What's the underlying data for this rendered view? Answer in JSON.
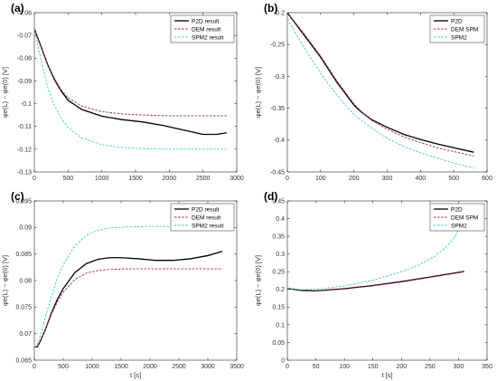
{
  "chart_data": [
    {
      "panel": "(a)",
      "type": "line",
      "xlim": [
        0,
        3000
      ],
      "ylim": [
        -0.13,
        -0.06
      ],
      "xticks": [
        0,
        500,
        1000,
        1500,
        2000,
        2500,
        3000
      ],
      "yticks": [
        -0.13,
        -0.12,
        -0.11,
        -0.1,
        -0.09,
        -0.08,
        -0.07,
        -0.06
      ],
      "ytick_labels": [
        "-0.13",
        "-0.12",
        "-0.11",
        "-0.1",
        "-0.09",
        "-0.08",
        "-0.07",
        "-0.06"
      ],
      "xlabel": "",
      "ylabel": "φe(L) − φe(0) [V]",
      "legend_position": "top-right",
      "series": [
        {
          "name": "P2D result",
          "color": "#000000",
          "dash": "solid",
          "x": [
            0,
            100,
            200,
            300,
            400,
            500,
            700,
            1000,
            1300,
            1600,
            1900,
            2200,
            2500,
            2700,
            2850
          ],
          "y": [
            -0.067,
            -0.075,
            -0.083,
            -0.0895,
            -0.0945,
            -0.0985,
            -0.1025,
            -0.1055,
            -0.107,
            -0.108,
            -0.1095,
            -0.1115,
            -0.1135,
            -0.1135,
            -0.1128
          ]
        },
        {
          "name": "DEM result",
          "color": "#a0283c",
          "dash": "dashed",
          "x": [
            0,
            100,
            200,
            300,
            400,
            500,
            700,
            1000,
            1300,
            1600,
            2000,
            2500,
            2850
          ],
          "y": [
            -0.067,
            -0.075,
            -0.083,
            -0.089,
            -0.094,
            -0.0975,
            -0.101,
            -0.1035,
            -0.1045,
            -0.105,
            -0.1053,
            -0.1053,
            -0.1053
          ]
        },
        {
          "name": "SPM2 result",
          "color": "#3cc8c8",
          "dash": "dashed",
          "x": [
            0,
            100,
            200,
            300,
            400,
            500,
            700,
            1000,
            1300,
            1600,
            2000,
            2500,
            2850
          ],
          "y": [
            -0.067,
            -0.081,
            -0.093,
            -0.101,
            -0.1065,
            -0.1105,
            -0.115,
            -0.118,
            -0.1192,
            -0.1198,
            -0.12,
            -0.12,
            -0.12
          ]
        }
      ]
    },
    {
      "panel": "(b)",
      "type": "line",
      "xlim": [
        0,
        600
      ],
      "ylim": [
        -0.45,
        -0.2
      ],
      "xticks": [
        0,
        100,
        200,
        300,
        400,
        500,
        600
      ],
      "yticks": [
        -0.45,
        -0.4,
        -0.35,
        -0.3,
        -0.25,
        -0.2
      ],
      "ytick_labels": [
        "-0.45",
        "-0.4",
        "-0.35",
        "-0.3",
        "-0.25",
        "-0.2"
      ],
      "xlabel": "",
      "ylabel": "φe(L) − φe(0) [V]",
      "legend_position": "top-right",
      "series": [
        {
          "name": "P2D",
          "color": "#000000",
          "dash": "solid",
          "x": [
            0,
            50,
            100,
            150,
            200,
            220,
            250,
            300,
            350,
            400,
            450,
            500,
            560
          ],
          "y": [
            -0.2,
            -0.235,
            -0.27,
            -0.31,
            -0.345,
            -0.355,
            -0.367,
            -0.38,
            -0.391,
            -0.399,
            -0.406,
            -0.412,
            -0.419
          ]
        },
        {
          "name": "DEM SPM",
          "color": "#a0283c",
          "dash": "dashed",
          "x": [
            0,
            50,
            100,
            150,
            200,
            220,
            250,
            300,
            350,
            400,
            450,
            500,
            560
          ],
          "y": [
            -0.2,
            -0.233,
            -0.268,
            -0.308,
            -0.343,
            -0.354,
            -0.368,
            -0.383,
            -0.395,
            -0.404,
            -0.412,
            -0.418,
            -0.425
          ]
        },
        {
          "name": "SPM2",
          "color": "#3cc8c8",
          "dash": "dashed",
          "x": [
            0,
            50,
            100,
            150,
            200,
            250,
            300,
            350,
            400,
            450,
            500,
            560
          ],
          "y": [
            -0.21,
            -0.255,
            -0.295,
            -0.33,
            -0.36,
            -0.38,
            -0.397,
            -0.41,
            -0.42,
            -0.428,
            -0.436,
            -0.444
          ]
        }
      ]
    },
    {
      "panel": "(c)",
      "type": "line",
      "xlim": [
        0,
        3500
      ],
      "ylim": [
        0.065,
        0.095
      ],
      "xticks": [
        0,
        500,
        1000,
        1500,
        2000,
        2500,
        3000,
        3500
      ],
      "yticks": [
        0.065,
        0.07,
        0.075,
        0.08,
        0.085,
        0.09,
        0.095
      ],
      "ytick_labels": [
        "0.065",
        "0.07",
        "0.075",
        "0.08",
        "0.085",
        "0.09",
        "0.095"
      ],
      "xlabel": "t [s]",
      "ylabel": "φe(L) − φe(0) [V]",
      "legend_position": "top-right",
      "series": [
        {
          "name": "P2D result",
          "color": "#000000",
          "dash": "solid",
          "x": [
            0,
            50,
            100,
            200,
            300,
            400,
            500,
            700,
            900,
            1100,
            1300,
            1500,
            1800,
            2100,
            2400,
            2700,
            3000,
            3250
          ],
          "y": [
            0.0675,
            0.0675,
            0.0685,
            0.071,
            0.074,
            0.0765,
            0.0785,
            0.0815,
            0.0832,
            0.084,
            0.0843,
            0.0843,
            0.0841,
            0.0838,
            0.0838,
            0.0841,
            0.0847,
            0.0855
          ]
        },
        {
          "name": "DEM result",
          "color": "#a0283c",
          "dash": "dashed",
          "x": [
            0,
            50,
            100,
            200,
            300,
            400,
            500,
            700,
            900,
            1100,
            1300,
            1600,
            2000,
            2500,
            3000,
            3250
          ],
          "y": [
            0.0675,
            0.0675,
            0.0685,
            0.071,
            0.0738,
            0.076,
            0.0778,
            0.0802,
            0.0814,
            0.0819,
            0.0821,
            0.0822,
            0.0822,
            0.0822,
            0.0822,
            0.0822
          ]
        },
        {
          "name": "SPM2 result",
          "color": "#3cc8c8",
          "dash": "dashed",
          "x": [
            0,
            50,
            100,
            200,
            300,
            400,
            500,
            700,
            900,
            1100,
            1300,
            1600,
            2000,
            2500,
            3000,
            3250
          ],
          "y": [
            0.0675,
            0.0678,
            0.0695,
            0.0735,
            0.077,
            0.0805,
            0.083,
            0.0865,
            0.0885,
            0.0895,
            0.0899,
            0.0901,
            0.0902,
            0.0902,
            0.0902,
            0.0902
          ]
        }
      ]
    },
    {
      "panel": "(d)",
      "type": "line",
      "xlim": [
        0,
        350
      ],
      "ylim": [
        0,
        0.45
      ],
      "xticks": [
        0,
        50,
        100,
        150,
        200,
        250,
        300,
        350
      ],
      "yticks": [
        0,
        0.05,
        0.1,
        0.15,
        0.2,
        0.25,
        0.3,
        0.35,
        0.4,
        0.45
      ],
      "ytick_labels": [
        "0",
        "0.05",
        "0.1",
        "0.15",
        "0.2",
        "0.25",
        "0.3",
        "0.35",
        "0.4",
        "0.45"
      ],
      "xlabel": "t [s]",
      "ylabel": "φe(L) − φe(0) [V]",
      "legend_position": "top-right",
      "series": [
        {
          "name": "P2D",
          "color": "#000000",
          "dash": "solid",
          "x": [
            0,
            25,
            50,
            100,
            150,
            200,
            250,
            300,
            310
          ],
          "y": [
            0.203,
            0.197,
            0.196,
            0.202,
            0.211,
            0.222,
            0.235,
            0.248,
            0.251
          ]
        },
        {
          "name": "DEM SPM",
          "color": "#a0283c",
          "dash": "dashed",
          "x": [
            0,
            25,
            50,
            100,
            150,
            200,
            250,
            300,
            310
          ],
          "y": [
            0.202,
            0.196,
            0.195,
            0.201,
            0.21,
            0.221,
            0.234,
            0.247,
            0.25
          ]
        },
        {
          "name": "SPM2",
          "color": "#3cc8c8",
          "dash": "dashed",
          "x": [
            0,
            25,
            50,
            100,
            150,
            200,
            230,
            260,
            280,
            295,
            305,
            310
          ],
          "y": [
            0.203,
            0.199,
            0.2,
            0.21,
            0.226,
            0.25,
            0.268,
            0.295,
            0.322,
            0.352,
            0.39,
            0.42
          ]
        }
      ]
    }
  ]
}
